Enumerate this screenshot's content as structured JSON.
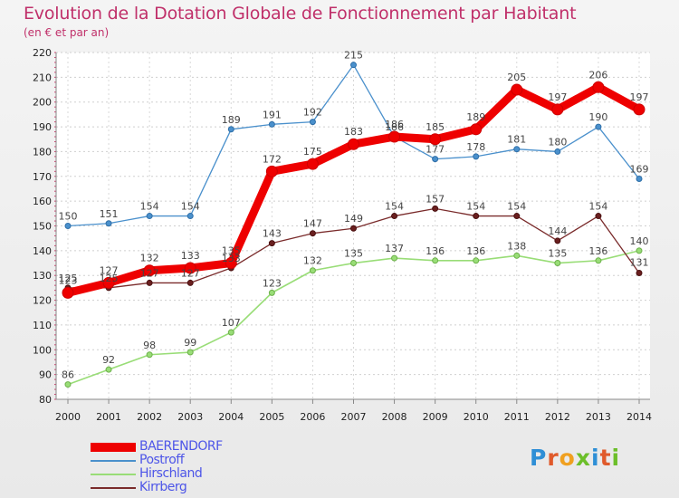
{
  "chart_data": {
    "type": "line",
    "title": "Evolution de la Dotation Globale de Fonctionnement par Habitant",
    "subtitle": "(en € et par an)",
    "x": [
      "2000",
      "2001",
      "2002",
      "2003",
      "2004",
      "2005",
      "2006",
      "2007",
      "2008",
      "2009",
      "2010",
      "2011",
      "2012",
      "2013",
      "2014"
    ],
    "ylim": [
      80,
      220
    ],
    "yticks": [
      80,
      90,
      100,
      110,
      120,
      130,
      140,
      150,
      160,
      170,
      180,
      190,
      200,
      210,
      220
    ],
    "grid": true,
    "legend_position": "bottom-left",
    "series": [
      {
        "name": "Postroff",
        "color": "#4a90cc",
        "values": [
          150,
          151,
          154,
          154,
          189,
          191,
          192,
          215,
          186,
          177,
          178,
          181,
          180,
          190,
          169
        ]
      },
      {
        "name": "Hirschland",
        "color": "#99dd77",
        "values": [
          86,
          92,
          98,
          99,
          107,
          123,
          132,
          135,
          137,
          136,
          136,
          138,
          135,
          136,
          140
        ]
      },
      {
        "name": "Kirrberg",
        "color": "#7a2b2b",
        "values": [
          125,
          125,
          127,
          127,
          133,
          143,
          147,
          149,
          154,
          157,
          154,
          154,
          144,
          154,
          131
        ]
      },
      {
        "name": "BAERENDORF",
        "color": "#ee0000",
        "values": [
          123,
          127,
          132,
          133,
          135,
          172,
          175,
          183,
          186,
          185,
          189,
          205,
          197,
          206,
          197
        ]
      }
    ],
    "legend_order": [
      "BAERENDORF",
      "Postroff",
      "Hirschland",
      "Kirrberg"
    ]
  },
  "logo": {
    "text": "Proxiti",
    "letters": [
      "P",
      "r",
      "o",
      "x",
      "i",
      "t",
      "i"
    ]
  }
}
